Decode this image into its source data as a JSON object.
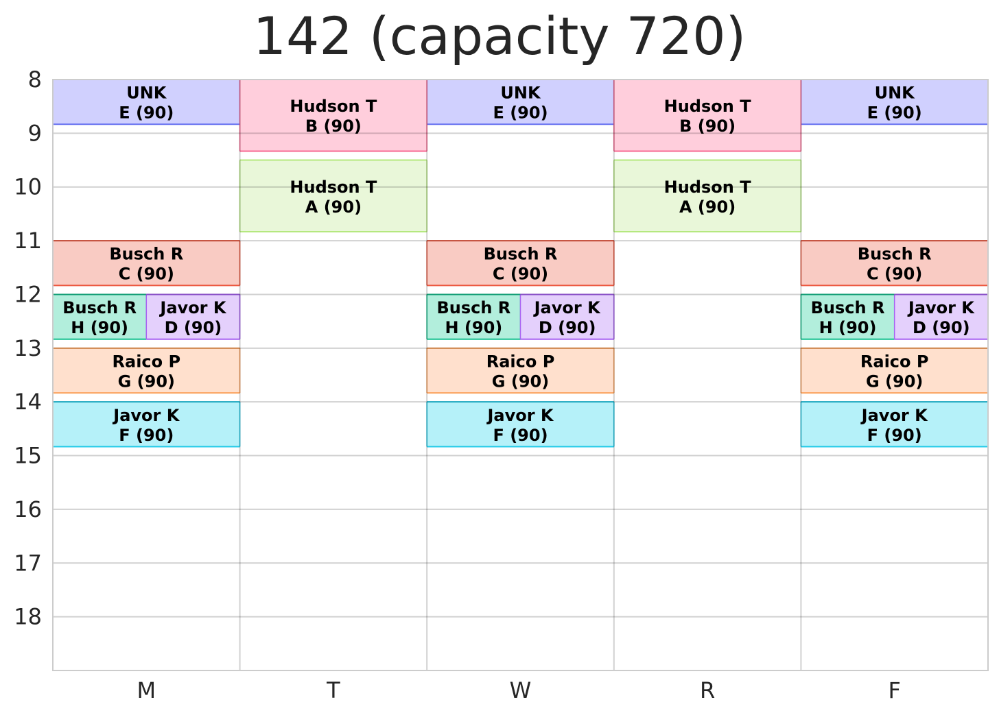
{
  "chart_data": {
    "type": "timetable",
    "title": "142 (capacity 720)",
    "days": [
      "M",
      "T",
      "W",
      "R",
      "F"
    ],
    "yticks": [
      8,
      9,
      10,
      11,
      12,
      13,
      14,
      15,
      16,
      17,
      18
    ],
    "ylim": [
      8,
      19
    ],
    "grid": true,
    "events": [
      {
        "day": "M",
        "start": 8.0,
        "end": 8.833,
        "line1": "UNK",
        "line2": "E (90)",
        "fill": "#d0d0fe",
        "edge": "#6670f0",
        "slot": 0,
        "slots": 1
      },
      {
        "day": "W",
        "start": 8.0,
        "end": 8.833,
        "line1": "UNK",
        "line2": "E (90)",
        "fill": "#d0d0fe",
        "edge": "#6670f0",
        "slot": 0,
        "slots": 1
      },
      {
        "day": "F",
        "start": 8.0,
        "end": 8.833,
        "line1": "UNK",
        "line2": "E (90)",
        "fill": "#d0d0fe",
        "edge": "#6670f0",
        "slot": 0,
        "slots": 1
      },
      {
        "day": "T",
        "start": 8.0,
        "end": 9.333,
        "line1": "Hudson T",
        "line2": "B (90)",
        "fill": "#ffcedc",
        "edge": "#f76a93",
        "slot": 0,
        "slots": 1
      },
      {
        "day": "R",
        "start": 8.0,
        "end": 9.333,
        "line1": "Hudson T",
        "line2": "B (90)",
        "fill": "#ffcedc",
        "edge": "#f76a93",
        "slot": 0,
        "slots": 1
      },
      {
        "day": "T",
        "start": 9.5,
        "end": 10.833,
        "line1": "Hudson T",
        "line2": "A (90)",
        "fill": "#e9f7d9",
        "edge": "#b5e87f",
        "slot": 0,
        "slots": 1
      },
      {
        "day": "R",
        "start": 9.5,
        "end": 10.833,
        "line1": "Hudson T",
        "line2": "A (90)",
        "fill": "#e9f7d9",
        "edge": "#b5e87f",
        "slot": 0,
        "slots": 1
      },
      {
        "day": "M",
        "start": 11.0,
        "end": 11.833,
        "line1": "Busch R",
        "line2": "C (90)",
        "fill": "#f9cbc3",
        "edge": "#ec5840",
        "slot": 0,
        "slots": 1
      },
      {
        "day": "W",
        "start": 11.0,
        "end": 11.833,
        "line1": "Busch R",
        "line2": "C (90)",
        "fill": "#f9cbc3",
        "edge": "#ec5840",
        "slot": 0,
        "slots": 1
      },
      {
        "day": "F",
        "start": 11.0,
        "end": 11.833,
        "line1": "Busch R",
        "line2": "C (90)",
        "fill": "#f9cbc3",
        "edge": "#ec5840",
        "slot": 0,
        "slots": 1
      },
      {
        "day": "M",
        "start": 12.0,
        "end": 12.833,
        "line1": "Busch R",
        "line2": "H (90)",
        "fill": "#b2eedc",
        "edge": "#16c08f",
        "slot": 0,
        "slots": 2
      },
      {
        "day": "W",
        "start": 12.0,
        "end": 12.833,
        "line1": "Busch R",
        "line2": "H (90)",
        "fill": "#b2eedc",
        "edge": "#16c08f",
        "slot": 0,
        "slots": 2
      },
      {
        "day": "F",
        "start": 12.0,
        "end": 12.833,
        "line1": "Busch R",
        "line2": "H (90)",
        "fill": "#b2eedc",
        "edge": "#16c08f",
        "slot": 0,
        "slots": 2
      },
      {
        "day": "M",
        "start": 12.0,
        "end": 12.833,
        "line1": "Javor K",
        "line2": "D (90)",
        "fill": "#e4d0fc",
        "edge": "#a862f2",
        "slot": 1,
        "slots": 2
      },
      {
        "day": "W",
        "start": 12.0,
        "end": 12.833,
        "line1": "Javor K",
        "line2": "D (90)",
        "fill": "#e4d0fc",
        "edge": "#a862f2",
        "slot": 1,
        "slots": 2
      },
      {
        "day": "F",
        "start": 12.0,
        "end": 12.833,
        "line1": "Javor K",
        "line2": "D (90)",
        "fill": "#e4d0fc",
        "edge": "#a862f2",
        "slot": 1,
        "slots": 2
      },
      {
        "day": "M",
        "start": 13.0,
        "end": 13.833,
        "line1": "Raico P",
        "line2": "G (90)",
        "fill": "#ffe0cd",
        "edge": "#fba35e",
        "slot": 0,
        "slots": 1
      },
      {
        "day": "W",
        "start": 13.0,
        "end": 13.833,
        "line1": "Raico P",
        "line2": "G (90)",
        "fill": "#ffe0cd",
        "edge": "#fba35e",
        "slot": 0,
        "slots": 1
      },
      {
        "day": "F",
        "start": 13.0,
        "end": 13.833,
        "line1": "Raico P",
        "line2": "G (90)",
        "fill": "#ffe0cd",
        "edge": "#fba35e",
        "slot": 0,
        "slots": 1
      },
      {
        "day": "M",
        "start": 14.0,
        "end": 14.833,
        "line1": "Javor K",
        "line2": "F (90)",
        "fill": "#b5f1f9",
        "edge": "#22cbe8",
        "slot": 0,
        "slots": 1
      },
      {
        "day": "W",
        "start": 14.0,
        "end": 14.833,
        "line1": "Javor K",
        "line2": "F (90)",
        "fill": "#b5f1f9",
        "edge": "#22cbe8",
        "slot": 0,
        "slots": 1
      },
      {
        "day": "F",
        "start": 14.0,
        "end": 14.833,
        "line1": "Javor K",
        "line2": "F (90)",
        "fill": "#b5f1f9",
        "edge": "#22cbe8",
        "slot": 0,
        "slots": 1
      }
    ]
  }
}
